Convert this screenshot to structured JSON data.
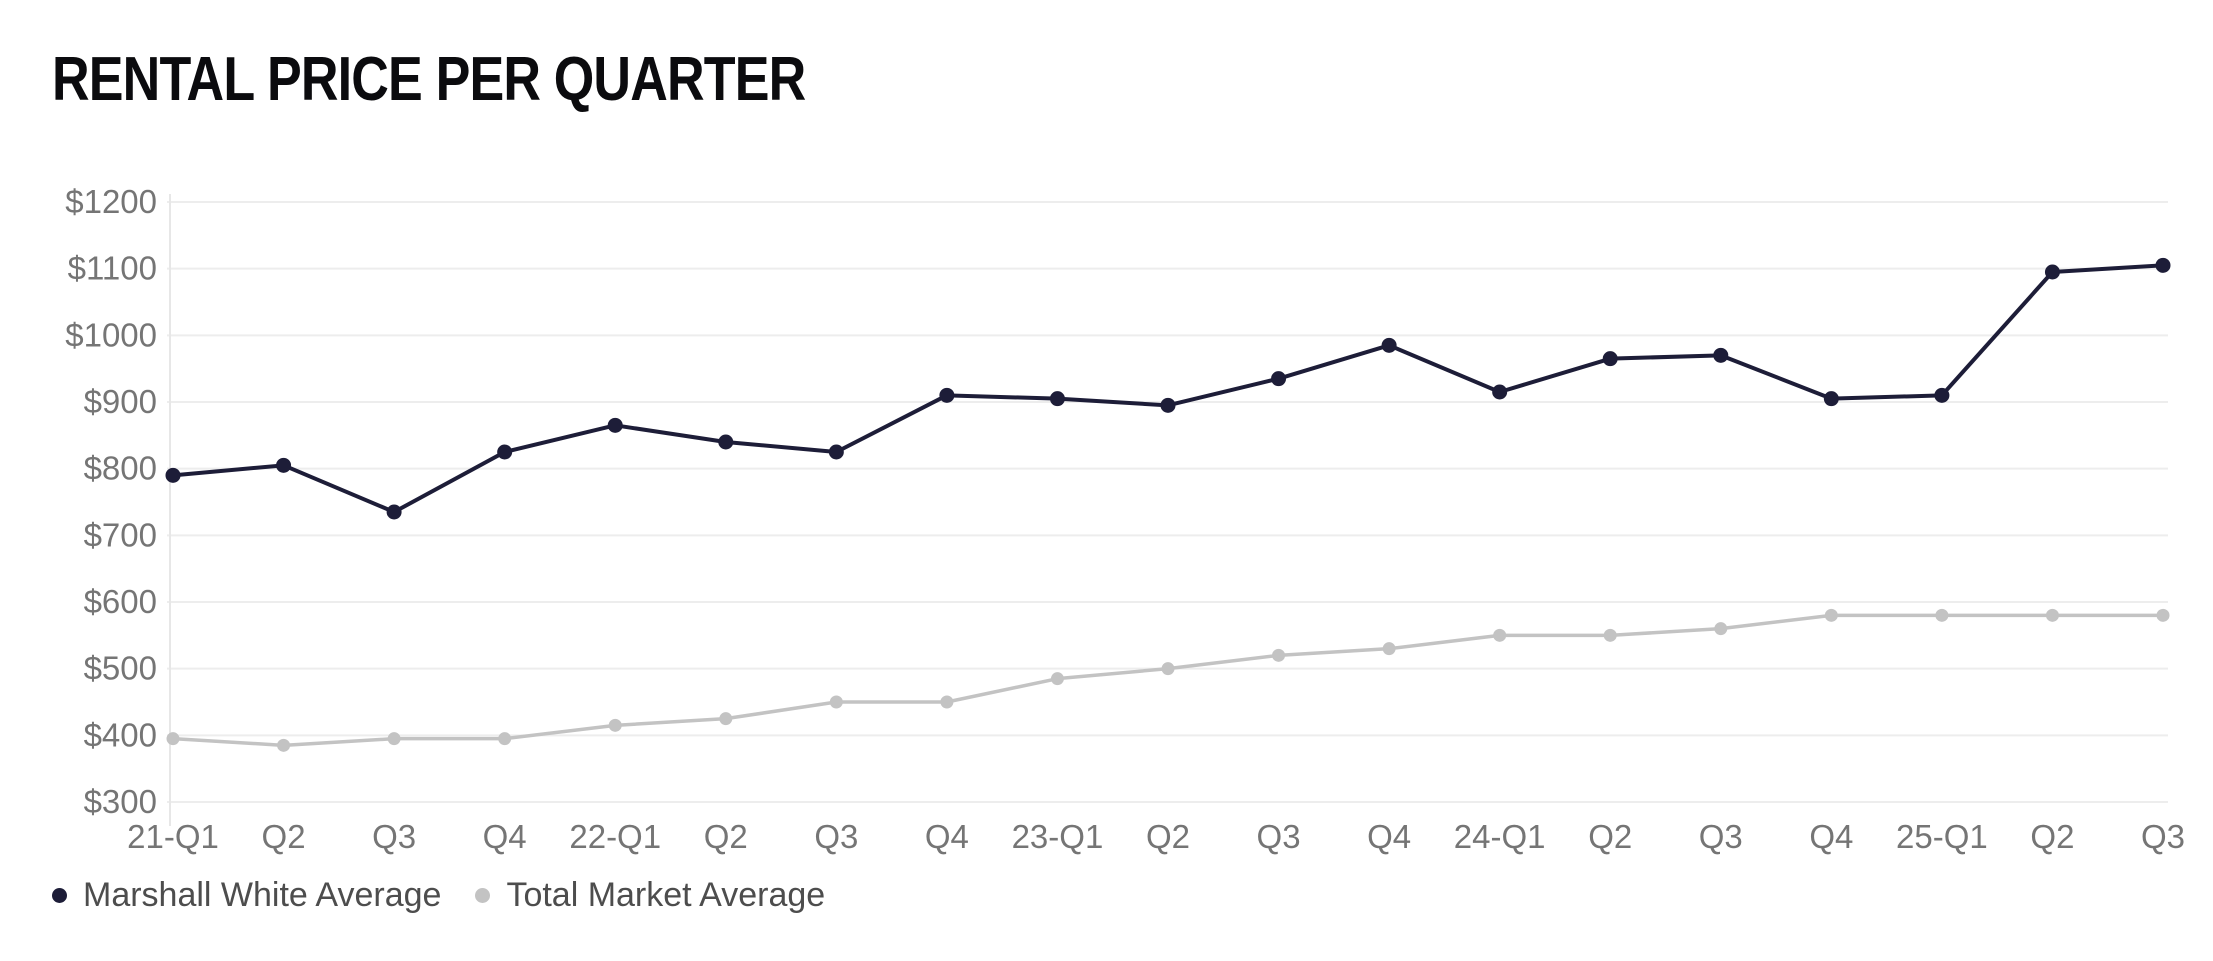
{
  "page": {
    "background": "#ffffff"
  },
  "chart_data": {
    "type": "line",
    "title": "RENTAL PRICE PER QUARTER",
    "categories": [
      "21-Q1",
      "Q2",
      "Q3",
      "Q4",
      "22-Q1",
      "Q2",
      "Q3",
      "Q4",
      "23-Q1",
      "Q2",
      "Q3",
      "Q4",
      "24-Q1",
      "Q2",
      "Q3",
      "Q4",
      "25-Q1",
      "Q2",
      "Q3"
    ],
    "series": [
      {
        "name": "Marshall White Average",
        "color": "#1d1d38",
        "values": [
          790,
          805,
          735,
          825,
          865,
          840,
          825,
          910,
          905,
          895,
          935,
          985,
          915,
          965,
          970,
          905,
          910,
          1095,
          1105
        ]
      },
      {
        "name": "Total Market Average",
        "color": "#c3c3c3",
        "values": [
          395,
          385,
          395,
          395,
          415,
          425,
          450,
          450,
          485,
          500,
          520,
          530,
          550,
          550,
          560,
          580,
          580,
          580,
          580
        ]
      }
    ],
    "xlabel": "",
    "ylabel": "",
    "ylim": [
      300,
      1200
    ],
    "ytick_step": 100,
    "ytick_labels": [
      "$300",
      "$400",
      "$500",
      "$600",
      "$700",
      "$800",
      "$900",
      "$1000",
      "$1100",
      "$1200"
    ],
    "grid": "horizontal",
    "grid_color": "#ededed",
    "axis_line_color": "#e7e7e7",
    "tick_text_color": "#757575",
    "legend_position": "bottom-left"
  }
}
